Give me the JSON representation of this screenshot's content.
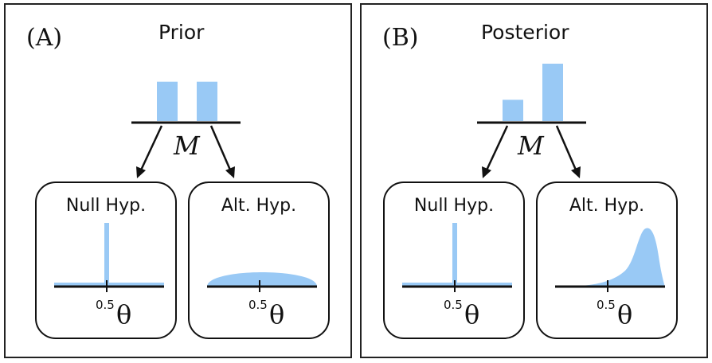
{
  "colors": {
    "fill": "#99c9f5",
    "ink": "#111111"
  },
  "panels": [
    {
      "letter": "(A)",
      "title": "Prior",
      "model_label": "M",
      "model_probs": [
        0.5,
        0.5
      ],
      "null": {
        "title": "Null Hyp.",
        "tick": "0.5",
        "axis": "θ"
      },
      "alt": {
        "title": "Alt. Hyp.",
        "tick": "0.5",
        "axis": "θ",
        "shape": "uniform"
      }
    },
    {
      "letter": "(B)",
      "title": "Posterior",
      "model_label": "M",
      "model_probs": [
        0.27,
        0.73
      ],
      "null": {
        "title": "Null Hyp.",
        "tick": "0.5",
        "axis": "θ"
      },
      "alt": {
        "title": "Alt. Hyp.",
        "tick": "0.5",
        "axis": "θ",
        "shape": "peaked"
      }
    }
  ]
}
